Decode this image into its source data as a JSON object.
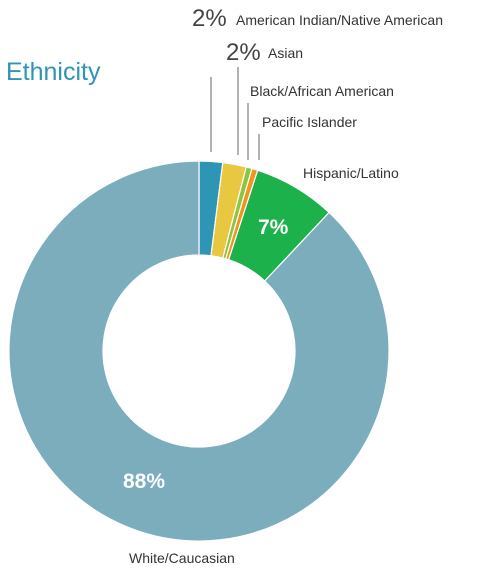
{
  "chart_data": {
    "type": "pie",
    "variant": "donut",
    "title": "Ethnicity",
    "title_color": "#2f95b4",
    "categories": [
      "American Indian/Native American",
      "Asian",
      "Black/African American",
      "Pacific Islander",
      "Hispanic/Latino",
      "White/Caucasian"
    ],
    "values": [
      2,
      2,
      0.5,
      0.5,
      7,
      88
    ],
    "value_labels": [
      "2%",
      "2%",
      "",
      "",
      "7%",
      "88%"
    ],
    "colors": [
      "#2f95b4",
      "#e8c840",
      "#8cc63f",
      "#f0961e",
      "#1db14b",
      "#7badbd"
    ],
    "legend": "none"
  }
}
